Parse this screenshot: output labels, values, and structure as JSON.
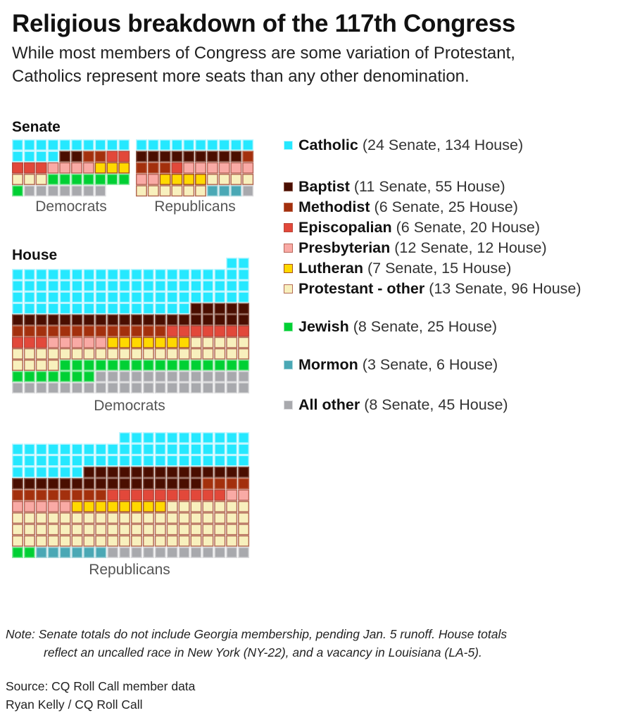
{
  "title": "Religious breakdown of the 117th Congress",
  "subtitle": [
    "While most members of Congress are some variation of Protestant,",
    "Catholics represent more seats than any other denomination."
  ],
  "note": [
    "Note: Senate totals do not include Georgia membership, pending Jan. 5 runoff. House totals",
    "reflect an uncalled race in New York (NY-22), and a vacancy in Louisiana (LA-5)."
  ],
  "source": "Source: CQ Roll Call member data",
  "credit": "Ryan Kelly / CQ Roll Call",
  "chart_data": {
    "type": "waffle",
    "categories": [
      {
        "key": "catholic",
        "name": "Catholic",
        "count_label": "(24 Senate, 134 House)",
        "color": "#25e8ff",
        "border": "#b9f6ff"
      },
      {
        "key": "baptist",
        "name": "Baptist",
        "count_label": "(11 Senate, 55 House)",
        "color": "#4a0e00",
        "border": "#8a5a4c"
      },
      {
        "key": "methodist",
        "name": "Methodist",
        "count_label": "(6 Senate, 25 House)",
        "color": "#a3300d",
        "border": "#b9654c"
      },
      {
        "key": "episcopalian",
        "name": "Episcopalian",
        "count_label": "(6 Senate, 20 House)",
        "color": "#e2483a",
        "border": "#b9473a"
      },
      {
        "key": "presbyterian",
        "name": "Presbyterian",
        "count_label": "(12 Senate, 12 House)",
        "color": "#f9aaa5",
        "border": "#b9675a"
      },
      {
        "key": "lutheran",
        "name": "Lutheran",
        "count_label": "(7 Senate, 15 House)",
        "color": "#ffd900",
        "border": "#a5501e"
      },
      {
        "key": "protestant_other",
        "name": "Protestant - other",
        "count_label": "(13 Senate, 96 House)",
        "color": "#f8f0bd",
        "border": "#b36b55"
      },
      {
        "key": "jewish",
        "name": "Jewish",
        "count_label": "(8 Senate, 25 House)",
        "color": "#00d034",
        "border": "#8ee8a3"
      },
      {
        "key": "mormon",
        "name": "Mormon",
        "count_label": "(3 Senate, 6 House)",
        "color": "#4aa8b5",
        "border": "#a9d6dc"
      },
      {
        "key": "other",
        "name": "All other",
        "count_label": "(8 Senate, 45 House)",
        "color": "#a8a9ad",
        "border": "#dcdcde"
      }
    ],
    "sections": {
      "senate": "Senate",
      "house": "House"
    },
    "groups": [
      {
        "chamber": "Senate",
        "party": "Democrats",
        "counts": [
          14,
          2,
          2,
          5,
          4,
          3,
          3,
          8,
          0,
          7
        ]
      },
      {
        "chamber": "Senate",
        "party": "Republicans",
        "counts": [
          10,
          9,
          4,
          1,
          8,
          4,
          10,
          0,
          3,
          1
        ]
      },
      {
        "chamber": "House",
        "party": "Democrats",
        "counts": [
          77,
          25,
          13,
          10,
          5,
          7,
          29,
          23,
          0,
          33
        ]
      },
      {
        "chamber": "House",
        "party": "Republicans",
        "counts": [
          57,
          30,
          12,
          10,
          7,
          8,
          67,
          2,
          6,
          12
        ]
      }
    ]
  }
}
